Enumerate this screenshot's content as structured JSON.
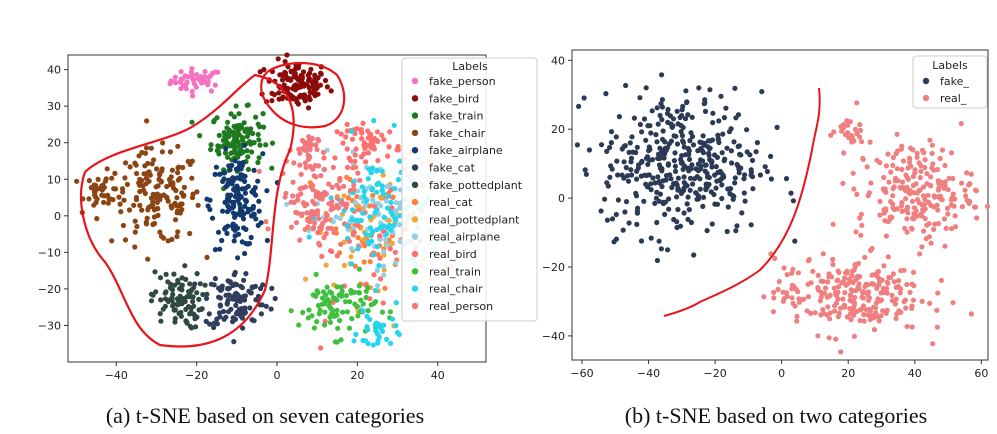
{
  "chart_data": [
    {
      "id": "a",
      "type": "scatter",
      "caption": "(a) t-SNE based on seven categories",
      "xlim": [
        -52,
        52
      ],
      "ylim": [
        -40,
        44
      ],
      "xticks": [
        -40,
        -20,
        0,
        20,
        40
      ],
      "yticks": [
        -30,
        -20,
        -10,
        0,
        10,
        20,
        30,
        40
      ],
      "xtick_labels": [
        "−40",
        "−20",
        "0",
        "20",
        "40"
      ],
      "ytick_labels": [
        "−30",
        "−20",
        "−10",
        "0",
        "10",
        "20",
        "30",
        "40"
      ],
      "legend_title": "Labels",
      "legend_position": "top-right",
      "series": [
        {
          "name": "fake_person",
          "color": "#f472c0",
          "clusters": [
            [
              -20,
              37,
              4,
              2,
              45
            ]
          ]
        },
        {
          "name": "fake_bird",
          "color": "#8b0a0a",
          "clusters": [
            [
              5,
              36,
              5,
              4,
              120
            ]
          ]
        },
        {
          "name": "fake_train",
          "color": "#1f7a1f",
          "clusters": [
            [
              -10,
              21,
              4,
              5,
              120
            ]
          ]
        },
        {
          "name": "fake_chair",
          "color": "#8b4513",
          "clusters": [
            [
              -30,
              5,
              7,
              8,
              150
            ],
            [
              -43,
              7,
              3,
              3,
              40
            ]
          ]
        },
        {
          "name": "fake_airplane",
          "color": "#123a6e",
          "clusters": [
            [
              -10,
              4,
              4,
              8,
              150
            ]
          ]
        },
        {
          "name": "fake_cat",
          "color": "#2f3e5c",
          "clusters": [
            [
              -10,
              -23,
              5,
              5,
              110
            ]
          ]
        },
        {
          "name": "fake_pottedplant",
          "color": "#2e4a40",
          "clusters": [
            [
              -25,
              -23,
              4,
              5,
              90
            ]
          ]
        },
        {
          "name": "real_cat",
          "color": "#ff7f3f",
          "clusters": [
            [
              25,
              -5,
              10,
              12,
              70
            ]
          ]
        },
        {
          "name": "real_pottedplant",
          "color": "#f2a63c",
          "clusters": [
            [
              25,
              -5,
              10,
              12,
              60
            ]
          ]
        },
        {
          "name": "real_airplane",
          "color": "#8fd0e8",
          "clusters": [
            [
              24,
              0,
              9,
              10,
              90
            ]
          ]
        },
        {
          "name": "real_bird",
          "color": "#ff6f6f",
          "clusters": [
            [
              23,
              20,
              5,
              3,
              60
            ],
            [
              20,
              -8,
              9,
              12,
              40
            ]
          ]
        },
        {
          "name": "real_train",
          "color": "#3fc03f",
          "clusters": [
            [
              15,
              -25,
              6,
              5,
              90
            ]
          ]
        },
        {
          "name": "real_chair",
          "color": "#25d5ee",
          "clusters": [
            [
              27,
              0,
              9,
              12,
              110
            ],
            [
              25,
              -32,
              3,
              3,
              30
            ]
          ]
        },
        {
          "name": "real_person",
          "color": "#f2787c",
          "clusters": [
            [
              10,
              5,
              6,
              7,
              110
            ],
            [
              7,
              18,
              2,
              3,
              30
            ]
          ]
        }
      ]
    },
    {
      "id": "b",
      "type": "scatter",
      "caption": "(b) t-SNE based on two categories",
      "xlim": [
        -63,
        62
      ],
      "ylim": [
        -47,
        43
      ],
      "xticks": [
        -60,
        -40,
        -20,
        0,
        20,
        40,
        60
      ],
      "yticks": [
        -40,
        -20,
        0,
        20,
        40
      ],
      "xtick_labels": [
        "−60",
        "−40",
        "−20",
        "0",
        "20",
        "40",
        "60"
      ],
      "ytick_labels": [
        "−40",
        "−20",
        "0",
        "20",
        "40"
      ],
      "legend_title": "Labels",
      "legend_position": "top-right",
      "series": [
        {
          "name": "fake_",
          "color": "#2b3a55",
          "clusters": [
            [
              -30,
              10,
              15,
              13,
              400
            ]
          ]
        },
        {
          "name": "real_",
          "color": "#f08080",
          "clusters": [
            [
              40,
              2,
              11,
              9,
              220
            ],
            [
              20,
              -28,
              14,
              7,
              250
            ],
            [
              20,
              19,
              3,
              2,
              25
            ]
          ]
        }
      ]
    }
  ]
}
